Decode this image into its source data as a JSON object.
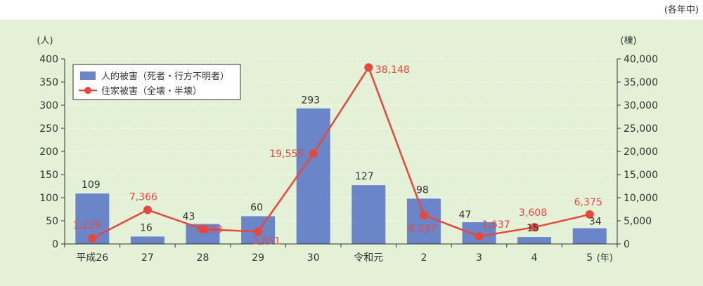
{
  "note": "(各年中)",
  "chart_data": {
    "type": "bar+line",
    "categories": [
      "平成26",
      "27",
      "28",
      "29",
      "30",
      "令和元",
      "2",
      "3",
      "4",
      "5"
    ],
    "x_unit": "(年)",
    "series": [
      {
        "name": "人的被害（死者・行方不明者）",
        "kind": "bar",
        "axis": "left",
        "values": [
          109,
          16,
          43,
          60,
          293,
          127,
          98,
          47,
          15,
          34
        ],
        "labels": [
          "109",
          "16",
          "43",
          "60",
          "293",
          "127",
          "98",
          "47",
          "15",
          "34"
        ],
        "color": "#6b86c8"
      },
      {
        "name": "住家被害（全壊・半壊）",
        "kind": "line",
        "axis": "right",
        "values": [
          1229,
          7366,
          3193,
          2651,
          19555,
          38148,
          6237,
          1637,
          3608,
          6375
        ],
        "labels": [
          "1,229",
          "7,366",
          "3,193",
          "2,651",
          "19,555",
          "38,148",
          "6,237",
          "1,637",
          "3,608",
          "6,375"
        ],
        "color": "#e8473c"
      }
    ],
    "y_left": {
      "unit": "(人)",
      "range": [
        0,
        400
      ],
      "ticks": [
        0,
        50,
        100,
        150,
        200,
        250,
        300,
        350,
        400
      ],
      "tick_labels": [
        "0",
        "50",
        "100",
        "150",
        "200",
        "250",
        "300",
        "350",
        "400"
      ]
    },
    "y_right": {
      "unit": "(棟)",
      "range": [
        0,
        40000
      ],
      "ticks": [
        0,
        5000,
        10000,
        15000,
        20000,
        25000,
        30000,
        35000,
        40000
      ],
      "tick_labels": [
        "0",
        "5,000",
        "10,000",
        "15,000",
        "20,000",
        "25,000",
        "30,000",
        "35,000",
        "40,000"
      ]
    },
    "grid": true,
    "legend_position": "top-left",
    "background_color": "#e3f1d6",
    "grid_color": "#ffffff"
  }
}
